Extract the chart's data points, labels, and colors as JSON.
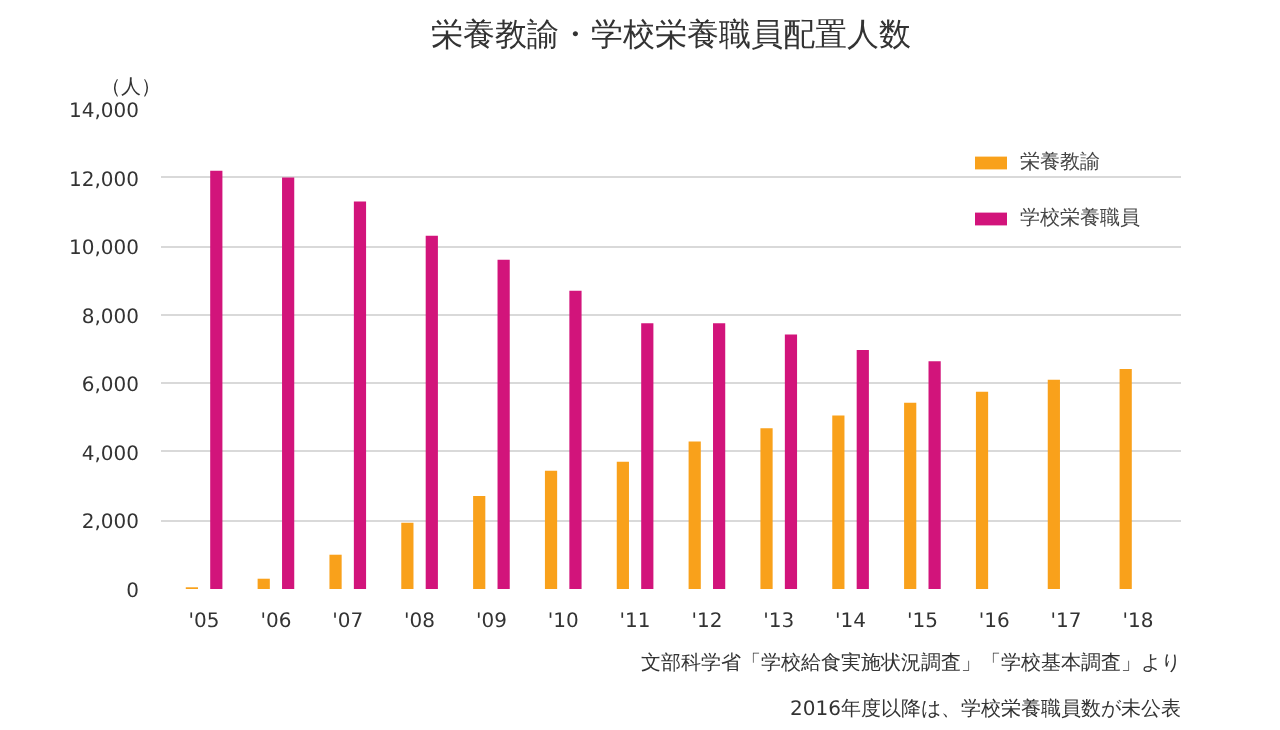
{
  "chart_data": {
    "type": "bar",
    "title": "栄養教諭・学校栄養職員配置人数",
    "ylabel": "（人）",
    "categories": [
      "'05",
      "'06",
      "'07",
      "'08",
      "'09",
      "'10",
      "'11",
      "'12",
      "'13",
      "'14",
      "'15",
      "'16",
      "'17",
      "'18"
    ],
    "series": [
      {
        "name": "栄養教諭",
        "color": "#f9a11b",
        "values": [
          50,
          300,
          1000,
          1930,
          2710,
          3450,
          3710,
          4300,
          4690,
          5060,
          5430,
          5750,
          6100,
          6420
        ]
      },
      {
        "name": "学校栄養職員",
        "color": "#d2147b",
        "values": [
          12200,
          12000,
          11300,
          10300,
          9600,
          8700,
          7750,
          7750,
          7420,
          6970,
          6640,
          null,
          null,
          null
        ]
      }
    ],
    "ylim": [
      0,
      14000
    ],
    "yticks": [
      {
        "value": 0,
        "label": "0"
      },
      {
        "value": 2000,
        "label": "2,000"
      },
      {
        "value": 4000,
        "label": "4,000"
      },
      {
        "value": 6000,
        "label": "6,000"
      },
      {
        "value": 8000,
        "label": "8,000"
      },
      {
        "value": 10000,
        "label": "10,000"
      },
      {
        "value": 12000,
        "label": "12,000"
      },
      {
        "value": 14000,
        "label": "14,000"
      }
    ],
    "grid": "y",
    "legend": "top right",
    "annotations": [
      "文部科学省「学校給食実施状況調査」「学校基本調査」より",
      "2016年度以降は、学校栄養職員数が未公表"
    ]
  }
}
